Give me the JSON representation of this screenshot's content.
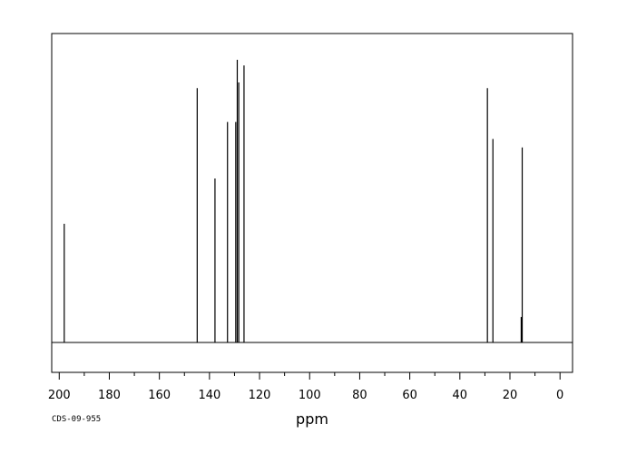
{
  "chart_data": {
    "type": "line",
    "xlabel": "ppm",
    "xlim": [
      203,
      -5
    ],
    "x_reversed": true,
    "ylim": [
      -0.12,
      1.0
    ],
    "grid": false,
    "x_ticks": [
      200,
      180,
      160,
      140,
      120,
      100,
      80,
      60,
      40,
      20,
      0
    ],
    "x_tick_labels": [
      "200",
      "180",
      "160",
      "140",
      "120",
      "100",
      "80",
      "60",
      "40",
      "20",
      "0"
    ],
    "peaks": [
      {
        "ppm": 198.0,
        "intensity": 0.42
      },
      {
        "ppm": 144.9,
        "intensity": 0.9
      },
      {
        "ppm": 137.8,
        "intensity": 0.58
      },
      {
        "ppm": 132.8,
        "intensity": 0.78
      },
      {
        "ppm": 129.5,
        "intensity": 0.78
      },
      {
        "ppm": 128.9,
        "intensity": 1.0
      },
      {
        "ppm": 128.3,
        "intensity": 0.92
      },
      {
        "ppm": 126.2,
        "intensity": 0.98
      },
      {
        "ppm": 29.0,
        "intensity": 0.9
      },
      {
        "ppm": 26.8,
        "intensity": 0.72
      },
      {
        "ppm": 15.1,
        "intensity": 0.69
      },
      {
        "ppm": 15.5,
        "intensity": 0.09
      }
    ],
    "annotation": "CDS-09-955"
  },
  "colors": {
    "line": "#000000",
    "background": "#ffffff"
  }
}
